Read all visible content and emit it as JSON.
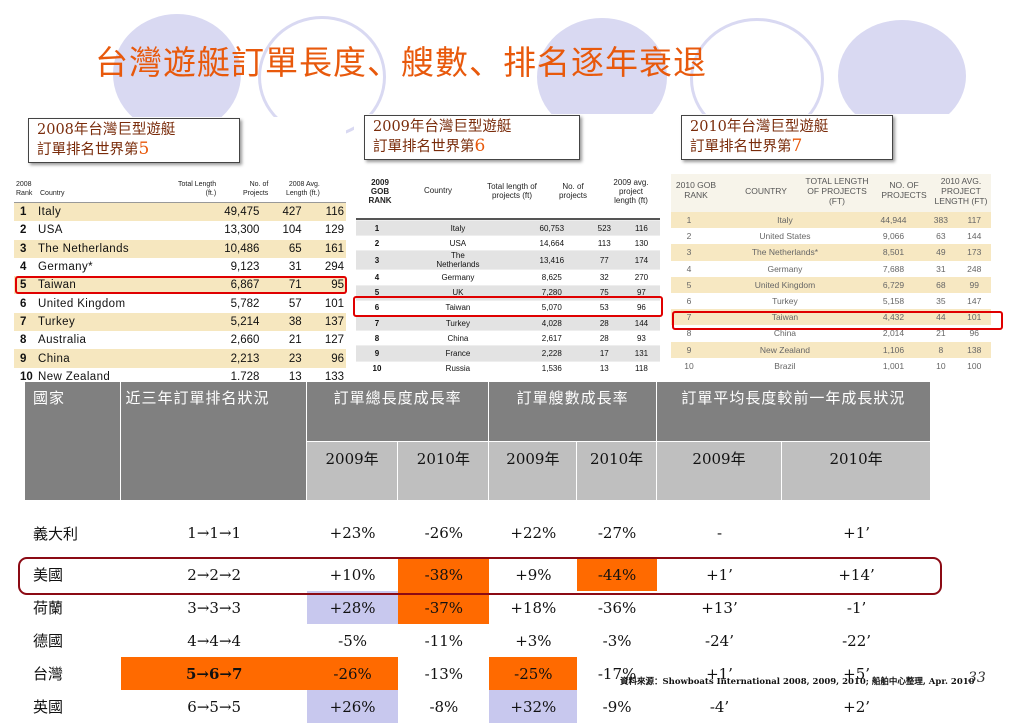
{
  "title": "台灣遊艇訂單長度、艘數、排名逐年衰退",
  "panel_2008": {
    "label_line1": "2008年台灣巨型遊艇",
    "label_line2_prefix": "訂單排名世界第",
    "label_num": "5",
    "header": {
      "rank": "2008\nRank",
      "country": "Country",
      "length": "Total Length\n(ft.)",
      "projects": "No. of\nProjects",
      "avg": "2008 Avg.\nLength (ft.)"
    },
    "rows": [
      {
        "rank": "1",
        "country": "Italy",
        "length": "49,475",
        "projects": "427",
        "avg": "116"
      },
      {
        "rank": "2",
        "country": "USA",
        "length": "13,300",
        "projects": "104",
        "avg": "129"
      },
      {
        "rank": "3",
        "country": "The Netherlands",
        "length": "10,486",
        "projects": "65",
        "avg": "161"
      },
      {
        "rank": "4",
        "country": "Germany*",
        "length": "9,123",
        "projects": "31",
        "avg": "294"
      },
      {
        "rank": "5",
        "country": "Taiwan",
        "length": "6,867",
        "projects": "71",
        "avg": "95"
      },
      {
        "rank": "6",
        "country": "United Kingdom",
        "length": "5,782",
        "projects": "57",
        "avg": "101"
      },
      {
        "rank": "7",
        "country": "Turkey",
        "length": "5,214",
        "projects": "38",
        "avg": "137"
      },
      {
        "rank": "8",
        "country": "Australia",
        "length": "2,660",
        "projects": "21",
        "avg": "127"
      },
      {
        "rank": "9",
        "country": "China",
        "length": "2,213",
        "projects": "23",
        "avg": "96"
      },
      {
        "rank": "10",
        "country": "New Zealand",
        "length": "1,728",
        "projects": "13",
        "avg": "133"
      }
    ]
  },
  "panel_2009": {
    "label_line1": "2009年台灣巨型遊艇",
    "label_line2_prefix": "訂單排名世界第",
    "label_num": "6",
    "header": {
      "rank": "2009\nGOB\nRANK",
      "country": "Country",
      "length": "Total length of\nprojects (ft)",
      "projects": "No. of\nprojects",
      "avg": "2009 avg.\nproject\nlength (ft)"
    },
    "rows": [
      {
        "rank": "1",
        "country": "Italy",
        "length": "60,753",
        "projects": "523",
        "avg": "116"
      },
      {
        "rank": "2",
        "country": "USA",
        "length": "14,664",
        "projects": "113",
        "avg": "130"
      },
      {
        "rank": "3",
        "country": "The\nNetherlands",
        "length": "13,416",
        "projects": "77",
        "avg": "174"
      },
      {
        "rank": "4",
        "country": "Germany",
        "length": "8,625",
        "projects": "32",
        "avg": "270"
      },
      {
        "rank": "5",
        "country": "UK",
        "length": "7,280",
        "projects": "75",
        "avg": "97"
      },
      {
        "rank": "6",
        "country": "Taiwan",
        "length": "5,070",
        "projects": "53",
        "avg": "96"
      },
      {
        "rank": "7",
        "country": "Turkey",
        "length": "4,028",
        "projects": "28",
        "avg": "144"
      },
      {
        "rank": "8",
        "country": "China",
        "length": "2,617",
        "projects": "28",
        "avg": "93"
      },
      {
        "rank": "9",
        "country": "France",
        "length": "2,228",
        "projects": "17",
        "avg": "131"
      },
      {
        "rank": "10",
        "country": "Russia",
        "length": "1,536",
        "projects": "13",
        "avg": "118"
      }
    ]
  },
  "panel_2010": {
    "label_line1": "2010年台灣巨型遊艇",
    "label_line2_prefix": "訂單排名世界第",
    "label_num": "7",
    "header": {
      "rank": "2010 GOB\nRANK",
      "country": "COUNTRY",
      "length": "TOTAL LENGTH\nOF PROJECTS\n(FT)",
      "projects": "NO. OF\nPROJECTS",
      "avg": "2010 AVG.\nPROJECT\nLENGTH (FT)"
    },
    "rows": [
      {
        "rank": "1",
        "country": "Italy",
        "length": "44,944",
        "projects": "383",
        "avg": "117"
      },
      {
        "rank": "2",
        "country": "United States",
        "length": "9,066",
        "projects": "63",
        "avg": "144"
      },
      {
        "rank": "3",
        "country": "The Netherlands*",
        "length": "8,501",
        "projects": "49",
        "avg": "173"
      },
      {
        "rank": "4",
        "country": "Germany",
        "length": "7,688",
        "projects": "31",
        "avg": "248"
      },
      {
        "rank": "5",
        "country": "United Kingdom",
        "length": "6,729",
        "projects": "68",
        "avg": "99"
      },
      {
        "rank": "6",
        "country": "Turkey",
        "length": "5,158",
        "projects": "35",
        "avg": "147"
      },
      {
        "rank": "7",
        "country": "Taiwan",
        "length": "4,432",
        "projects": "44",
        "avg": "101"
      },
      {
        "rank": "8",
        "country": "China",
        "length": "2,014",
        "projects": "21",
        "avg": "96"
      },
      {
        "rank": "9",
        "country": "New Zealand",
        "length": "1,106",
        "projects": "8",
        "avg": "138"
      },
      {
        "rank": "10",
        "country": "Brazil",
        "length": "1,001",
        "projects": "10",
        "avg": "100"
      }
    ]
  },
  "summary": {
    "header": {
      "country": "國家",
      "rank_trend": "近三年訂單排名狀況",
      "length_growth": "訂單總長度成長率",
      "count_growth": "訂單艘數成長率",
      "avg_growth": "訂單平均長度較前一年成長狀況",
      "y2009": "2009年",
      "y2010": "2010年",
      "y2009_short": "2009年"
    },
    "rows": [
      {
        "country": "義大利",
        "rank": "1→1→1",
        "len09": "+23%",
        "len10": "-26%",
        "cnt09": "+22%",
        "cnt10": "-27%",
        "avg09": "-",
        "avg10": "+1’"
      },
      {
        "country": "美國",
        "rank": "2→2→2",
        "len09": "+10%",
        "len10": "-38%",
        "cnt09": "+9%",
        "cnt10": "-44%",
        "avg09": "+1’",
        "avg10": "+14’"
      },
      {
        "country": "荷蘭",
        "rank": "3→3→3",
        "len09": "+28%",
        "len10": "-37%",
        "cnt09": "+18%",
        "cnt10": "-36%",
        "avg09": "+13’",
        "avg10": "-1’"
      },
      {
        "country": "德國",
        "rank": "4→4→4",
        "len09": "-5%",
        "len10": "-11%",
        "cnt09": "+3%",
        "cnt10": "-3%",
        "avg09": "-24’",
        "avg10": "-22’"
      },
      {
        "country": "台灣",
        "rank": "5→6→7",
        "len09": "-26%",
        "len10": "-13%",
        "cnt09": "-25%",
        "cnt10": "-17%",
        "avg09": "+1’",
        "avg10": "+5’"
      },
      {
        "country": "英國",
        "rank": "6→5→5",
        "len09": "+26%",
        "len10": "-8%",
        "cnt09": "+32%",
        "cnt10": "-9%",
        "avg09": "-4’",
        "avg10": "+2’"
      }
    ]
  },
  "source": "資料來源：Showboats International 2008, 2009, 2010; 船舶中心整理, Apr. 2010",
  "page_number": "33",
  "colors": {
    "title": "#e8590c",
    "highlight_orange": "#ff6a00",
    "highlight_lavender": "#c8c8ee",
    "header_gray": "#808080",
    "red_box": "#e00000",
    "maroon_box": "#8b0a14"
  }
}
